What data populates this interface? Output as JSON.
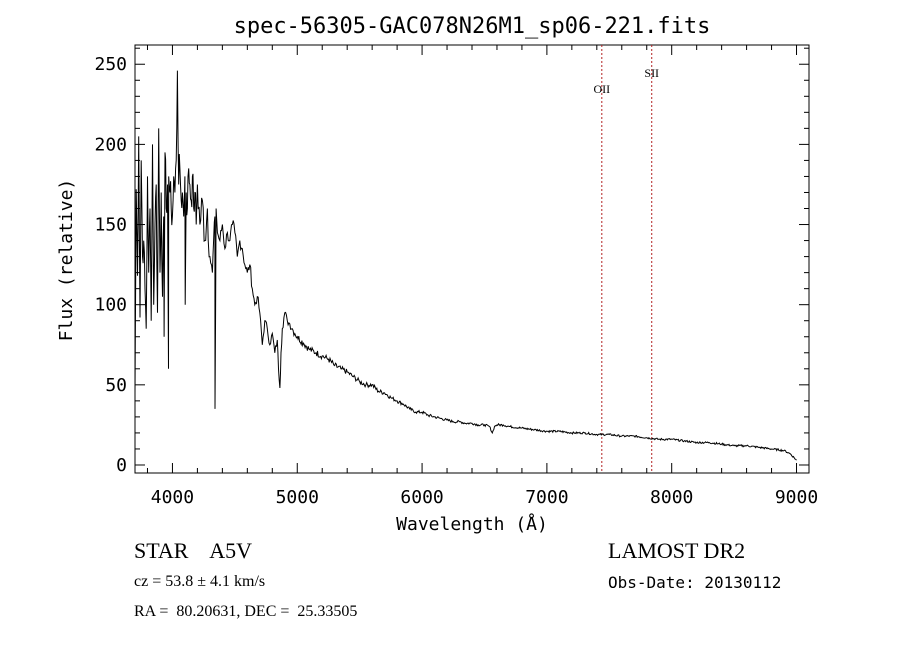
{
  "chart_data": {
    "type": "line",
    "title": "spec-56305-GAC078N26M1_sp06-221.fits",
    "xlabel": "Wavelength (Å)",
    "ylabel": "Flux (relative)",
    "xlim": [
      3700,
      9100
    ],
    "ylim": [
      -5,
      262
    ],
    "xticks": [
      4000,
      5000,
      6000,
      7000,
      8000,
      9000
    ],
    "yticks": [
      0,
      50,
      100,
      150,
      200,
      250
    ],
    "grid": false,
    "series": [
      {
        "values_note": "",
        "x": [
          3700,
          3710,
          3720,
          3730,
          3740,
          3750,
          3760,
          3770,
          3780,
          3790,
          3800,
          3810,
          3820,
          3830,
          3840,
          3850,
          3860,
          3870,
          3880,
          3890,
          3900,
          3910,
          3920,
          3930,
          3933,
          3940,
          3950,
          3960,
          3968,
          3970,
          3980,
          3990,
          4000,
          4010,
          4020,
          4030,
          4040,
          4050,
          4060,
          4070,
          4080,
          4090,
          4100,
          4102,
          4110,
          4120,
          4130,
          4140,
          4150,
          4160,
          4170,
          4180,
          4190,
          4200,
          4220,
          4240,
          4260,
          4280,
          4300,
          4320,
          4330,
          4340,
          4341,
          4350,
          4360,
          4380,
          4400,
          4420,
          4440,
          4460,
          4480,
          4500,
          4520,
          4540,
          4560,
          4580,
          4600,
          4620,
          4640,
          4660,
          4680,
          4700,
          4720,
          4740,
          4760,
          4780,
          4800,
          4820,
          4840,
          4850,
          4861,
          4870,
          4880,
          4900,
          4920,
          4940,
          4960,
          4980,
          5000,
          5050,
          5100,
          5150,
          5200,
          5250,
          5300,
          5350,
          5400,
          5450,
          5500,
          5550,
          5600,
          5650,
          5700,
          5750,
          5800,
          5850,
          5900,
          5950,
          6000,
          6050,
          6100,
          6150,
          6200,
          6250,
          6300,
          6350,
          6400,
          6450,
          6500,
          6540,
          6563,
          6580,
          6600,
          6650,
          6700,
          6800,
          6900,
          7000,
          7100,
          7200,
          7300,
          7400,
          7500,
          7600,
          7700,
          7800,
          7900,
          8000,
          8100,
          8200,
          8300,
          8400,
          8500,
          8600,
          8700,
          8800,
          8900,
          8950,
          9000
        ],
        "y": [
          45,
          172,
          118,
          205,
          92,
          190,
          130,
          140,
          110,
          85,
          180,
          120,
          160,
          90,
          200,
          100,
          150,
          175,
          95,
          210,
          120,
          170,
          105,
          155,
          80,
          195,
          160,
          175,
          60,
          180,
          170,
          160,
          155,
          180,
          170,
          190,
          246,
          175,
          185,
          165,
          170,
          155,
          180,
          100,
          170,
          160,
          185,
          175,
          165,
          180,
          160,
          170,
          150,
          175,
          150,
          165,
          140,
          160,
          130,
          120,
          140,
          155,
          35,
          160,
          145,
          140,
          150,
          135,
          145,
          140,
          150,
          145,
          130,
          140,
          135,
          125,
          120,
          125,
          110,
          100,
          105,
          95,
          75,
          90,
          85,
          75,
          82,
          70,
          78,
          60,
          48,
          70,
          85,
          95,
          90,
          88,
          85,
          82,
          80,
          76,
          72,
          70,
          68,
          66,
          62,
          60,
          58,
          55,
          52,
          50,
          50,
          46,
          45,
          42,
          40,
          38,
          35,
          33,
          33,
          31,
          30,
          29,
          28,
          27,
          27,
          26,
          26,
          25,
          25,
          24,
          20,
          24,
          25,
          25,
          24,
          23,
          22,
          21,
          21,
          20,
          20,
          19,
          19,
          18,
          18,
          17,
          16,
          16,
          15,
          14,
          14,
          13,
          12,
          12,
          11,
          10,
          9,
          7,
          3
        ]
      }
    ],
    "annotations": [
      {
        "label": "OII",
        "x": 7440,
        "label_y": 232
      },
      {
        "label": "SII",
        "x": 7840,
        "label_y": 242
      }
    ],
    "annotation_color": "#b22222",
    "line_color": "#000000",
    "frame_color": "#000000"
  },
  "footer": {
    "star_type": "STAR    A5V",
    "cz": "cz = 53.8 ± 4.1 km/s",
    "radec": "RA =  80.20631, DEC =  25.33505",
    "survey": "LAMOST DR2",
    "obs_date": "Obs-Date: 20130112"
  }
}
